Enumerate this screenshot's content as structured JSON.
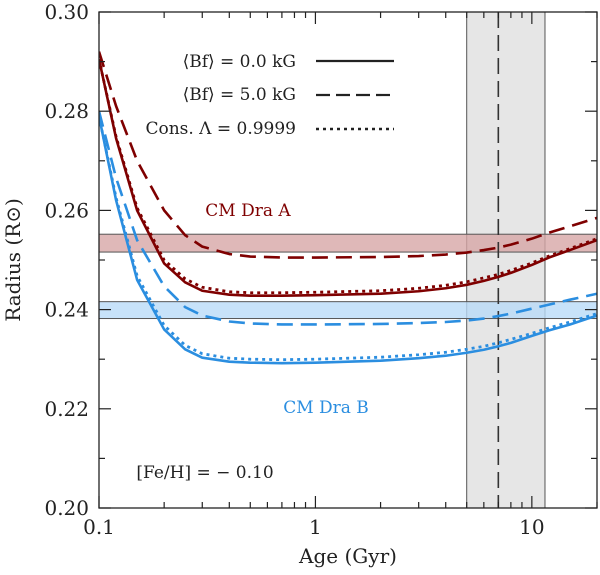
{
  "chart_data": {
    "type": "line",
    "xlabel": "Age (Gyr)",
    "ylabel": "Radius (R⊙)",
    "xscale": "log",
    "xlim": [
      0.1,
      20
    ],
    "ylim": [
      0.2,
      0.3
    ],
    "x_ticks": [
      {
        "value": 0.1,
        "label": "0.1"
      },
      {
        "value": 1,
        "label": "1"
      },
      {
        "value": 10,
        "label": "10"
      }
    ],
    "y_ticks": [
      {
        "value": 0.2,
        "label": "0.20"
      },
      {
        "value": 0.22,
        "label": "0.22"
      },
      {
        "value": 0.24,
        "label": "0.24"
      },
      {
        "value": 0.26,
        "label": "0.26"
      },
      {
        "value": 0.28,
        "label": "0.28"
      },
      {
        "value": 0.3,
        "label": "0.30"
      }
    ],
    "colors": {
      "dra_a": "#7f0000",
      "dra_b": "#2b8ee0",
      "band_a": "#d7a6a6",
      "band_b": "#b9dbf8",
      "age_band": "#e6e6e6"
    },
    "legend": [
      {
        "label": "⟨Bf⟩ = 0.0 kG",
        "style": "solid"
      },
      {
        "label": "⟨Bf⟩ = 5.0 kG",
        "style": "dashed"
      },
      {
        "label": "Cons. Λ = 0.9999",
        "style": "dotted"
      }
    ],
    "annotations": {
      "star_a": "CM Dra A",
      "star_b": "CM Dra B",
      "metallicity": "[Fe/H] = − 0.10"
    },
    "observed_radius_bands": [
      {
        "name": "CM Dra A",
        "ymin": 0.2516,
        "ymax": 0.2552
      },
      {
        "name": "CM Dra B",
        "ymin": 0.2382,
        "ymax": 0.2416
      }
    ],
    "age_band": {
      "xmin": 5.0,
      "xmax": 11.5,
      "center": 7.0
    },
    "series": [
      {
        "name": "CM Dra A, ⟨Bf⟩ = 0.0 kG",
        "star": "A",
        "style": "solid",
        "x": [
          0.1,
          0.12,
          0.15,
          0.2,
          0.25,
          0.3,
          0.4,
          0.5,
          0.7,
          1.0,
          2.0,
          3.0,
          4.0,
          5.0,
          6.0,
          7.0,
          8.0,
          10.0,
          12.0,
          15.0,
          20.0
        ],
        "y": [
          0.2905,
          0.2745,
          0.26,
          0.2493,
          0.2455,
          0.2438,
          0.243,
          0.2428,
          0.2428,
          0.2429,
          0.2432,
          0.2437,
          0.2443,
          0.245,
          0.2458,
          0.2466,
          0.2474,
          0.249,
          0.2505,
          0.252,
          0.254
        ]
      },
      {
        "name": "CM Dra A, ⟨Bf⟩ = 5.0 kG",
        "star": "A",
        "style": "dashed",
        "x": [
          0.1,
          0.12,
          0.15,
          0.2,
          0.25,
          0.3,
          0.4,
          0.5,
          0.7,
          1.0,
          2.0,
          3.0,
          4.0,
          5.0,
          6.0,
          7.0,
          8.0,
          10.0,
          12.0,
          15.0,
          20.0
        ],
        "y": [
          0.292,
          0.281,
          0.27,
          0.26,
          0.255,
          0.2527,
          0.2512,
          0.2507,
          0.2505,
          0.2505,
          0.2506,
          0.2508,
          0.2511,
          0.2515,
          0.252,
          0.2525,
          0.2531,
          0.2543,
          0.2555,
          0.2568,
          0.2585
        ]
      },
      {
        "name": "CM Dra A, Cons. Λ = 0.9999",
        "star": "A",
        "style": "dotted",
        "x": [
          0.1,
          0.12,
          0.15,
          0.2,
          0.25,
          0.3,
          0.4,
          0.5,
          0.7,
          1.0,
          2.0,
          3.0,
          4.0,
          5.0,
          6.0,
          7.0,
          8.0,
          10.0,
          12.0,
          15.0,
          20.0
        ],
        "y": [
          0.2905,
          0.2748,
          0.2605,
          0.25,
          0.2462,
          0.2445,
          0.2436,
          0.2434,
          0.2434,
          0.2435,
          0.2438,
          0.2443,
          0.2449,
          0.2456,
          0.2464,
          0.2471,
          0.2479,
          0.2494,
          0.2508,
          0.2523,
          0.2543
        ]
      },
      {
        "name": "CM Dra B, ⟨Bf⟩ = 0.0 kG",
        "star": "B",
        "style": "solid",
        "x": [
          0.1,
          0.12,
          0.15,
          0.2,
          0.25,
          0.3,
          0.4,
          0.5,
          0.7,
          1.0,
          2.0,
          3.0,
          4.0,
          5.0,
          6.0,
          7.0,
          8.0,
          10.0,
          12.0,
          15.0,
          20.0
        ],
        "y": [
          0.279,
          0.262,
          0.246,
          0.236,
          0.232,
          0.2303,
          0.2295,
          0.2293,
          0.2292,
          0.2293,
          0.2297,
          0.2302,
          0.2307,
          0.2313,
          0.2319,
          0.2326,
          0.2333,
          0.2347,
          0.2358,
          0.237,
          0.2388
        ]
      },
      {
        "name": "CM Dra B, ⟨Bf⟩ = 5.0 kG",
        "star": "B",
        "style": "dashed",
        "x": [
          0.1,
          0.12,
          0.15,
          0.2,
          0.25,
          0.3,
          0.4,
          0.5,
          0.7,
          1.0,
          2.0,
          3.0,
          4.0,
          5.0,
          6.0,
          7.0,
          8.0,
          10.0,
          12.0,
          15.0,
          20.0
        ],
        "y": [
          0.28,
          0.2665,
          0.254,
          0.2447,
          0.2405,
          0.2388,
          0.2376,
          0.2372,
          0.237,
          0.237,
          0.2371,
          0.2373,
          0.2375,
          0.2378,
          0.2382,
          0.2387,
          0.2392,
          0.2402,
          0.241,
          0.242,
          0.2432
        ]
      },
      {
        "name": "CM Dra B, Cons. Λ = 0.9999",
        "star": "B",
        "style": "dotted",
        "x": [
          0.1,
          0.12,
          0.15,
          0.2,
          0.25,
          0.3,
          0.4,
          0.5,
          0.7,
          1.0,
          2.0,
          3.0,
          4.0,
          5.0,
          6.0,
          7.0,
          8.0,
          10.0,
          12.0,
          15.0,
          20.0
        ],
        "y": [
          0.279,
          0.2625,
          0.2468,
          0.2368,
          0.2328,
          0.2311,
          0.2302,
          0.23,
          0.2299,
          0.23,
          0.2304,
          0.2309,
          0.2314,
          0.232,
          0.2326,
          0.2333,
          0.234,
          0.2352,
          0.2363,
          0.2375,
          0.2392
        ]
      }
    ]
  }
}
